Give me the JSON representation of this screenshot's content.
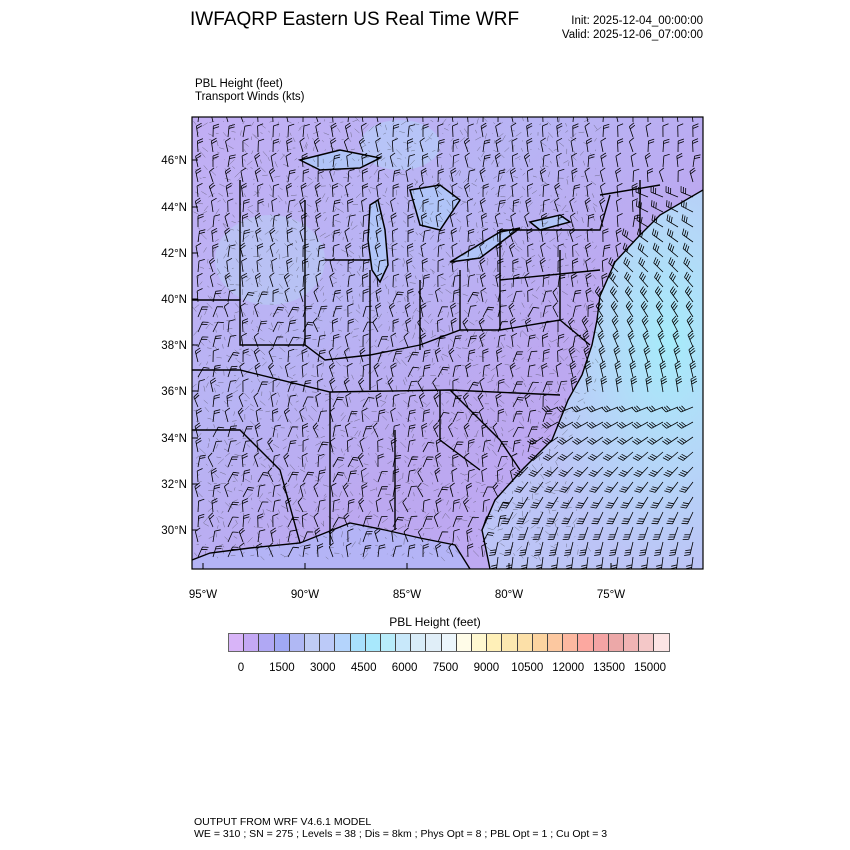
{
  "header": {
    "title": "IWFAQRP Eastern US Real Time WRF",
    "init": "Init: 2025-12-04_00:00:00",
    "valid": "Valid: 2025-12-06_07:00:00"
  },
  "subtitle": {
    "field": "PBL Height   (feet)",
    "vectors": "Transport Winds   (kts)"
  },
  "map": {
    "lat_labels": [
      "46°N",
      "44°N",
      "42°N",
      "40°N",
      "38°N",
      "36°N",
      "34°N",
      "32°N",
      "30°N"
    ],
    "lon_labels": [
      "95°W",
      "90°W",
      "85°W",
      "80°W",
      "75°W"
    ],
    "colors": {
      "land": "#bca8f0",
      "ocean": "#b4d8f8",
      "ocean_bright": "#a6ecfa"
    }
  },
  "colorbar": {
    "title": "PBL Height  (feet)",
    "labels": [
      "0",
      "1500",
      "3000",
      "4500",
      "6000",
      "7500",
      "9000",
      "10500",
      "12000",
      "13500",
      "15000"
    ],
    "colors": [
      "#d8b4f8",
      "#c4a8f4",
      "#b0a8f4",
      "#a0a8f4",
      "#b0b8f4",
      "#c0ccf4",
      "#bccaf8",
      "#b4d4fc",
      "#a8e0fc",
      "#a8e8fc",
      "#b8ecfa",
      "#c8e8fa",
      "#d8ecf8",
      "#e0eef8",
      "#ecf6fc",
      "#fffce8",
      "#fff8d0",
      "#fff0b8",
      "#fce8b0",
      "#fce0a8",
      "#fcd4a0",
      "#fcc8a0",
      "#fcb8a0",
      "#fca8a0",
      "#f4a4a4",
      "#eca8a8",
      "#f0b4b4",
      "#f4c8c8",
      "#fce4e4"
    ]
  },
  "footer": {
    "line1": "OUTPUT FROM WRF V4.6.1 MODEL",
    "line2": "WE = 310 ; SN = 275 ; Levels = 38 ; Dis = 8km ; Phys Opt = 8 ; PBL Opt = 1 ; Cu Opt = 3"
  }
}
